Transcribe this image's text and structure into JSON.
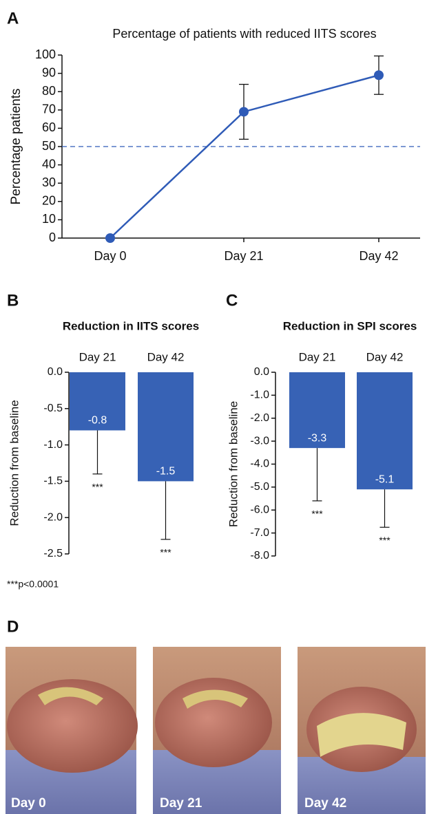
{
  "panels": [
    "A",
    "B",
    "C",
    "D"
  ],
  "chart_data": [
    {
      "type": "line",
      "title": "Percentage of patients with reduced IITS scores",
      "ylabel": "Percentage patients",
      "categories": [
        "Day 0",
        "Day 21",
        "Day 42"
      ],
      "values": [
        0,
        69,
        89
      ],
      "errors": [
        null,
        15,
        10.5
      ],
      "color": "#2f5bb7",
      "hline": 50,
      "ylim": [
        0,
        100
      ],
      "yticks": [
        0,
        10,
        20,
        30,
        40,
        50,
        60,
        70,
        80,
        90,
        100
      ]
    },
    {
      "type": "bar",
      "title": "Reduction in IITS scores",
      "ylabel": "Reduction from baseline",
      "categories": [
        "Day 21",
        "Day 42"
      ],
      "values": [
        -0.8,
        -1.5
      ],
      "errors": [
        0.6,
        0.8
      ],
      "significance": [
        "***",
        "***"
      ],
      "color": "#3762b5",
      "ylim": [
        -2.5,
        0
      ],
      "yticks": [
        {
          "value": 0,
          "label": "0.0"
        },
        -0.5,
        {
          "value": -1,
          "label": "-1.0"
        },
        -1.5,
        {
          "value": -2,
          "label": "-2.0"
        },
        -2.5
      ]
    },
    {
      "type": "bar",
      "title": "Reduction in SPI scores",
      "ylabel": "Reduction from baseline",
      "categories": [
        "Day 21",
        "Day 42"
      ],
      "values": [
        -3.3,
        -5.1
      ],
      "errors": [
        2.3,
        1.65
      ],
      "significance": [
        "***",
        "***"
      ],
      "color": "#3762b5",
      "ylim": [
        -8,
        0
      ],
      "yticks": [
        {
          "value": 0,
          "label": "0.0"
        },
        {
          "value": -1,
          "label": "-1.0"
        },
        {
          "value": -2,
          "label": "-2.0"
        },
        {
          "value": -3,
          "label": "-3.0"
        },
        {
          "value": -4,
          "label": "-4.0"
        },
        {
          "value": -5,
          "label": "-5.0"
        },
        {
          "value": -6,
          "label": "-6.0"
        },
        {
          "value": -7,
          "label": "-7.0"
        },
        {
          "value": -8,
          "label": "-8.0"
        }
      ]
    }
  ],
  "footnote": "***p<0.0001",
  "photos": [
    {
      "label": "Day 0"
    },
    {
      "label": "Day 21"
    },
    {
      "label": "Day 42"
    }
  ]
}
